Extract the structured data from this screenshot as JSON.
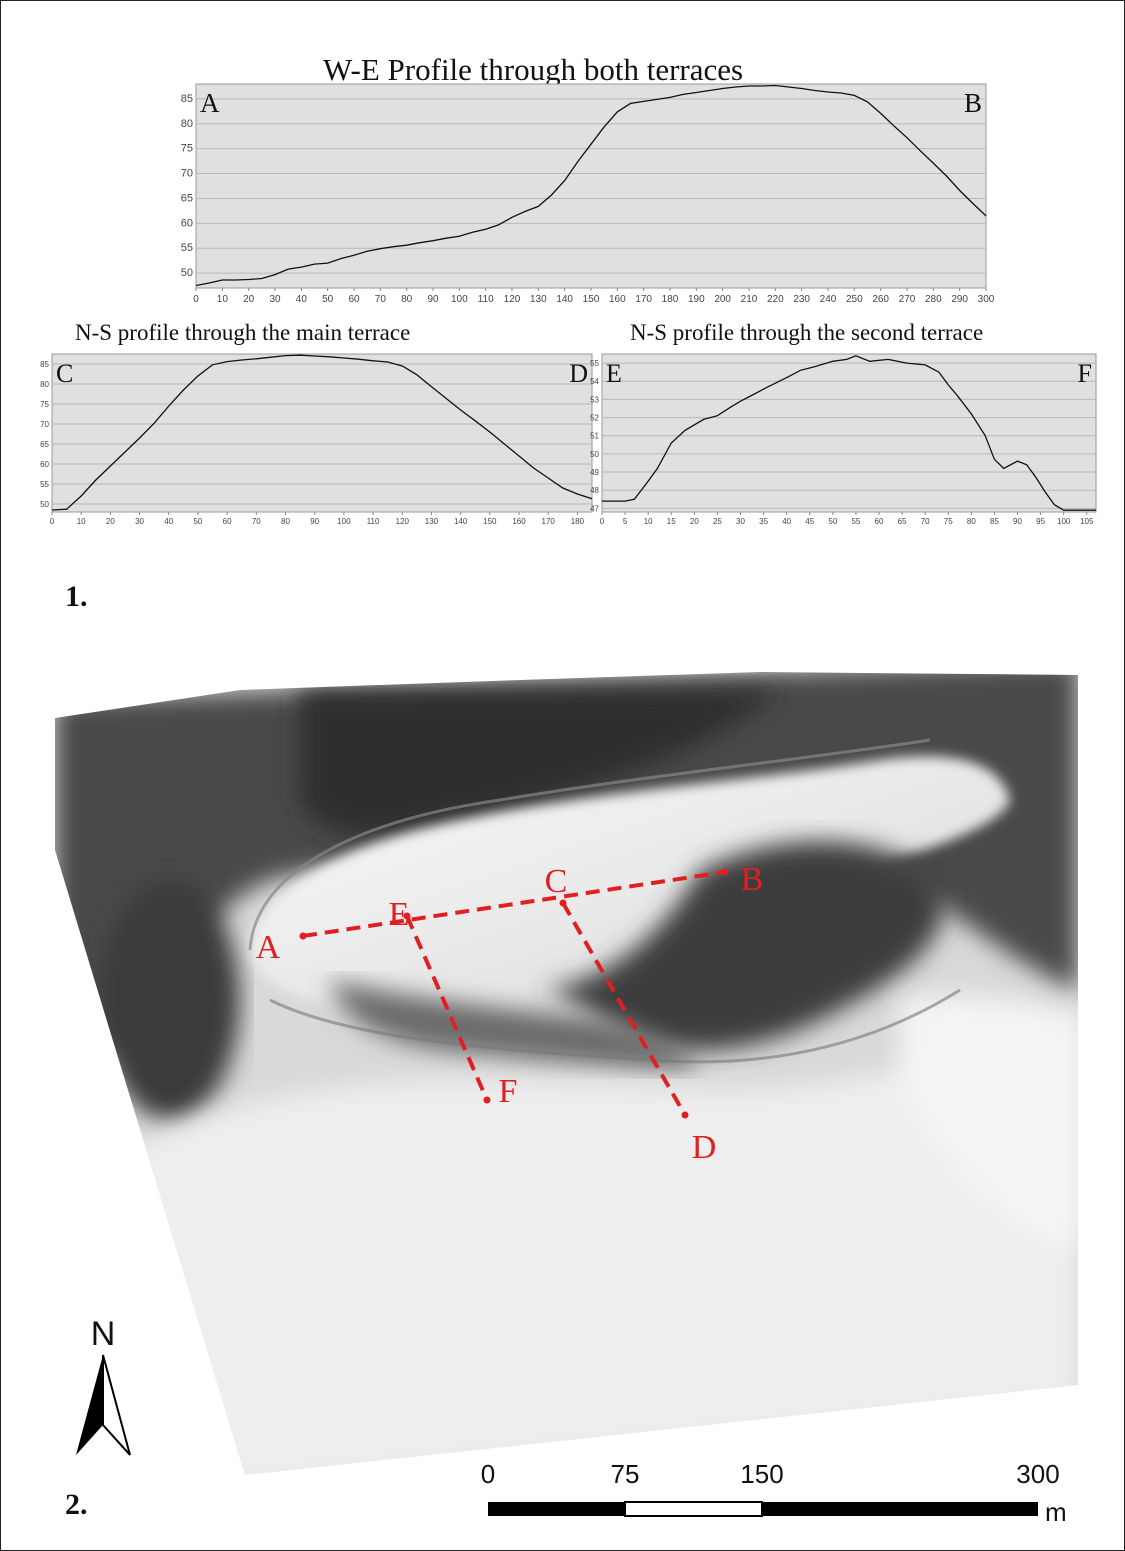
{
  "chart_data": [
    {
      "type": "line",
      "title": "W-E Profile through both terraces",
      "start_label": "A",
      "end_label": "B",
      "xlim": [
        0,
        300
      ],
      "ylim": [
        47,
        88
      ],
      "x_ticks": [
        0,
        10,
        20,
        30,
        40,
        50,
        60,
        70,
        80,
        90,
        100,
        110,
        120,
        130,
        140,
        150,
        160,
        170,
        180,
        190,
        200,
        210,
        220,
        230,
        240,
        250,
        260,
        270,
        280,
        290,
        300
      ],
      "y_ticks": [
        50,
        55,
        60,
        65,
        70,
        75,
        80,
        85
      ],
      "grid": true,
      "x": [
        0,
        5,
        10,
        15,
        20,
        25,
        30,
        35,
        40,
        45,
        50,
        55,
        60,
        65,
        70,
        75,
        80,
        85,
        90,
        95,
        100,
        105,
        110,
        115,
        120,
        125,
        130,
        135,
        140,
        145,
        150,
        155,
        160,
        165,
        170,
        175,
        180,
        185,
        190,
        195,
        200,
        205,
        210,
        215,
        220,
        225,
        230,
        235,
        240,
        245,
        250,
        255,
        260,
        265,
        270,
        275,
        280,
        285,
        290,
        295,
        300
      ],
      "y": [
        47.5,
        48,
        48.6,
        48.6,
        48.7,
        48.9,
        49.7,
        50.8,
        51.2,
        51.8,
        52,
        52.9,
        53.6,
        54.4,
        54.9,
        55.3,
        55.6,
        56.1,
        56.5,
        57,
        57.4,
        58.2,
        58.8,
        59.7,
        61.2,
        62.4,
        63.4,
        65.7,
        68.6,
        72.4,
        75.9,
        79.4,
        82.4,
        84.1,
        84.5,
        84.9,
        85.3,
        85.9,
        86.3,
        86.7,
        87.1,
        87.4,
        87.6,
        87.6,
        87.7,
        87.4,
        87.1,
        86.7,
        86.4,
        86.2,
        85.7,
        84.4,
        82.1,
        79.6,
        77.2,
        74.6,
        72.1,
        69.5,
        66.6,
        64,
        61.5
      ]
    },
    {
      "type": "line",
      "title": "N-S profile through the main terrace",
      "start_label": "C",
      "end_label": "D",
      "xlim": [
        0,
        185
      ],
      "ylim": [
        48,
        87.5
      ],
      "x_ticks": [
        0,
        10,
        20,
        30,
        40,
        50,
        60,
        70,
        80,
        90,
        100,
        110,
        120,
        130,
        140,
        150,
        160,
        170,
        180
      ],
      "y_ticks": [
        50,
        55,
        60,
        65,
        70,
        75,
        80,
        85
      ],
      "grid": true,
      "x": [
        0,
        5,
        10,
        15,
        20,
        25,
        30,
        35,
        40,
        45,
        50,
        55,
        60,
        65,
        70,
        75,
        80,
        85,
        90,
        95,
        100,
        105,
        110,
        115,
        120,
        125,
        130,
        135,
        140,
        145,
        150,
        155,
        160,
        165,
        170,
        175,
        180,
        185
      ],
      "y": [
        48.5,
        48.7,
        52,
        56,
        59.5,
        63,
        66.5,
        70.2,
        74.5,
        78.5,
        82,
        84.8,
        85.6,
        86,
        86.3,
        86.7,
        87.1,
        87.2,
        87,
        86.8,
        86.5,
        86.2,
        85.8,
        85.5,
        84.5,
        82.3,
        79.3,
        76.4,
        73.5,
        70.8,
        68,
        65,
        62,
        59,
        56.5,
        54,
        52.5,
        51.3
      ]
    },
    {
      "type": "line",
      "title": "N-S profile through the second terrace",
      "start_label": "E",
      "end_label": "F",
      "xlim": [
        0,
        107
      ],
      "ylim": [
        46.8,
        55.5
      ],
      "x_ticks": [
        0,
        5,
        10,
        15,
        20,
        25,
        30,
        35,
        40,
        45,
        50,
        55,
        60,
        65,
        70,
        75,
        80,
        85,
        90,
        95,
        100,
        105
      ],
      "y_ticks": [
        47,
        48,
        49,
        50,
        51,
        52,
        53,
        54,
        55
      ],
      "grid": true,
      "x": [
        0,
        5,
        7,
        10,
        12,
        15,
        18,
        22,
        25,
        28,
        30,
        33,
        36,
        40,
        43,
        46,
        50,
        53,
        55,
        58,
        62,
        66,
        70,
        73,
        75,
        77,
        80,
        83,
        85,
        87,
        90,
        92,
        94,
        96,
        98,
        100,
        103,
        107
      ],
      "y": [
        47.4,
        47.4,
        47.5,
        48.5,
        49.2,
        50.6,
        51.3,
        51.9,
        52.1,
        52.6,
        52.9,
        53.3,
        53.7,
        54.2,
        54.6,
        54.8,
        55.1,
        55.2,
        55.4,
        55.1,
        55.2,
        55,
        54.9,
        54.5,
        53.8,
        53.2,
        52.2,
        51,
        49.7,
        49.2,
        49.6,
        49.4,
        48.7,
        47.9,
        47.2,
        46.9,
        46.9,
        46.9
      ]
    }
  ],
  "figure_labels": {
    "part1": "1.",
    "part2": "2."
  },
  "map": {
    "profile_color": "#e02020",
    "north_label": "N",
    "scale_ticks": [
      "0",
      "75",
      "150",
      "300"
    ],
    "scale_unit": "m",
    "profile_points": [
      "A",
      "B",
      "C",
      "D",
      "E",
      "F"
    ]
  }
}
